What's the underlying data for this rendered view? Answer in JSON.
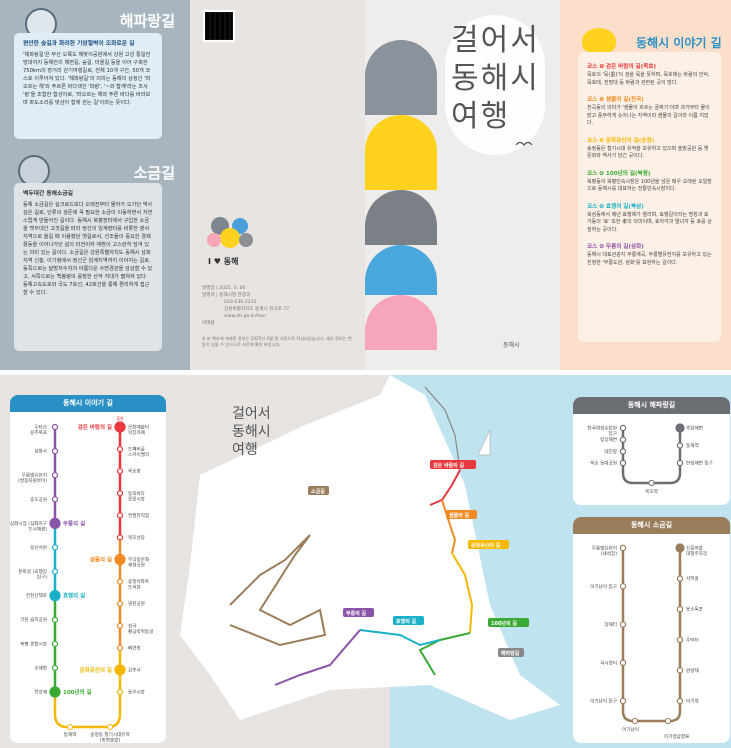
{
  "haeparang": {
    "title": "해파랑길",
    "subtitle": "편안한 숲길과 화려한 기암절벽이 조화로운 길",
    "body": "'해파랑길'은 부산 오륙도 해맞이공원에서 강원 고성 통일전망대까지 동해안의 해변길, 숲길, 마을길 등을 이어 구축한 750km의 장거리 걷기여행길로, 전체 10개 구간, 50개 코스로 이루어져 있다. '해파랑길'의 의미는 동해의 상징인 '떠오르는 해'와 푸르른 바다색인 '파랑', '~와 함께'라는 조사 '랑'을 조합한 합성어로, '떠오르는 해와 푸른 바다를 바라보며 파도소리를 벗삼아 함께 걷는 길'이라는 뜻이다."
  },
  "sogeum": {
    "title": "소금길",
    "subtitle": "백두대간 동해소금길",
    "body": "동해 소금길은 실크로드보다 오래전부터 물자가 오가던 역사 깊은 길로, 인류의 생존에 꼭 필요한 소금이 이동하면서 자연스럽게 만들어진 길이다. 동해시 북평장터에서 구입한 소금을 백두대간 고갯길을 따라 정선의 임계장터를 비롯한 영서 지역으로 옮길 때 이용했던 옛길로서, 선조들이 중요한 경제활동을 이어나가던 삶의 터전이자 애환이 고스란히 담겨 있는 의미 있는 길이다. 소금길은 강원특별자치도 동해시 삼화지역 신흥, 이기령에서 정선군 임계지역까지 이어지는 길로, 동쪽으로는 달방저수지의 아름다운 수변경관을 감상할 수 있고, 서쪽으로는 백봉령의 웅장한 산악 지대가 펼쳐져 있다. 동해고속도로와 국도 7호선, 42호선을 통해 편리하게 접근할 수 있다."
  },
  "publication": {
    "logo_text": "I ♥ 동해",
    "lines": [
      "발행일 | 2025. 0. 00",
      "발행처 | 동해시청 관광과",
      "033-530-2232",
      "강원특별자치도 동해시 천곡로 77",
      "www.dh.go.kr/tour",
      "비매품"
    ],
    "note": "※ 본 책자에 게재된 정보는 2025년 0월 말 기준으로 작성되었습니다. 세부 정보는 변동이 있을 수 있으므로 사전에 확인 바랍니다."
  },
  "cover": {
    "title_lines": [
      "걸어서",
      "동해시",
      "여행"
    ],
    "publisher_logo": "동해시"
  },
  "story": {
    "title": "동해시 이야기 길",
    "courses": [
      {
        "label": "코스 ❶ 검은 바람의 길(묵호)",
        "color": "#e8383d",
        "text": "묵호의 '묵(墨)'이 검을 묵을 뜻하며, 묵호에는 바람의 언덕, 묵호태, 전망대 등 바람과 관련된 곳이 많다."
      },
      {
        "label": "코스 ❷ 샘물의 길(천곡)",
        "color": "#f08a24",
        "text": "천곡동의 의미가 '샘물이 흐르는 골짜기'이며 과거부터 물이 맑고 풍부하게 솟아나는 지역이라 샘물의 길이라 이름 지었다."
      },
      {
        "label": "코스 ❸ 문화유산의 길(송정)",
        "color": "#f5b700",
        "text": "송정동은 철기시대 유적을 보유하고 있으며 솔밭공원 등 옛 문화와 역사가 담긴 곳이다."
      },
      {
        "label": "코스 ❹ 100년의 길(북평)",
        "color": "#3aaa35",
        "text": "북평동의 북평민속시장은 100년을 넘은 매우 오래된 오일장으로 동해시를 대표하는 전통민속시장이다."
      },
      {
        "label": "코스 ❺ 효행의 길(북삼)",
        "color": "#1ab0c8",
        "text": "북삼동에서 매년 효행제가 열리며, 효행길이라는 명칭과 효가동의 '효' 또한 孝의 의미이며, 효자각과 열녀각 등 효를 상징하는 곳이다."
      },
      {
        "label": "코스 ❻ 무릉의 길(삼화)",
        "color": "#8a55a8",
        "text": "동해시 대표관광지 무릉계곡, 무릉별유천지를 보유하고 있는 진정한 '무릉도원, 삼화'를 표현하는 길이다."
      }
    ]
  },
  "story_route": {
    "title": "동해시 이야기 길",
    "start_badge": "출발",
    "left_stations": [
      {
        "name": "두타산 용추폭포",
        "color": "#8a55a8"
      },
      {
        "name": "삼화사",
        "color": "#8a55a8"
      },
      {
        "name": "무릉별유천지 (쌍용자원바이)",
        "color": "#8a55a8"
      },
      {
        "name": "중도공원",
        "color": "#8a55a8"
      },
      {
        "name": "삼화시장 (삼화지구 도시재생)",
        "color": "#8a55a8",
        "course": "무릉의 길",
        "course_color": "#8a55a8"
      },
      {
        "name": "용산서원",
        "color": "#1ab0c8"
      },
      {
        "name": "분토골 (효행길 입구)",
        "color": "#1ab0c8"
      },
      {
        "name": "전천산책로",
        "color": "#1ab0c8",
        "course": "효행의 길",
        "course_color": "#1ab0c8"
      },
      {
        "name": "기린 습지공원",
        "color": "#3aaa35"
      },
      {
        "name": "북평 종합시장",
        "color": "#3aaa35"
      },
      {
        "name": "호해정",
        "color": "#3aaa35"
      },
      {
        "name": "언강재",
        "color": "#3aaa35",
        "course": "100년의 길",
        "course_color": "#3aaa35"
      }
    ],
    "right_stations": [
      {
        "name": "문화예술더 익장카페",
        "color": "#e8383d",
        "course": "검은 바람의 길",
        "course_color": "#e8383d"
      },
      {
        "name": "도째비골 스카이밸리",
        "color": "#e8383d"
      },
      {
        "name": "묵호항",
        "color": "#e8383d"
      },
      {
        "name": "동쪽바다 중앙시장",
        "color": "#e8383d"
      },
      {
        "name": "연필뮤지엄",
        "color": "#e8383d"
      },
      {
        "name": "묵호성당",
        "color": "#e8383d"
      },
      {
        "name": "부곡동문화 재생공원",
        "color": "#f08a24",
        "course": "샘물의 길",
        "course_color": "#f08a24"
      },
      {
        "name": "용정아파트 도서관",
        "color": "#f08a24"
      },
      {
        "name": "냉천공원",
        "color": "#f08a24"
      },
      {
        "name": "천곡 황금박쥐동굴",
        "color": "#f08a24"
      },
      {
        "name": "배연정",
        "color": "#f08a24"
      },
      {
        "name": "감추사",
        "color": "#f5b700",
        "course": "문화유산의 길",
        "course_color": "#f5b700"
      },
      {
        "name": "동부시장",
        "color": "#f5b700"
      }
    ],
    "bottom_stations": [
      "동해역",
      "송정동 철기시대유적 (송정솔밭)"
    ]
  },
  "haeparang_route": {
    "title": "동해시 해파랑길",
    "color": "#6b6e73",
    "left_stations": [
      "한국여성수련원 입구",
      "망상해변",
      "대진항",
      "묵호 등대공원"
    ],
    "bottom_station": "묵호역",
    "right_stations": [
      "추암해변",
      "동해역",
      "한섬해변 입구"
    ]
  },
  "sogeum_route": {
    "title": "동해시 소금길",
    "color": "#9a7d5a",
    "left_stations": [
      "무릉별유천지 (쇄석장)",
      "이기남이 입구",
      "장재터",
      "국시령이",
      "이기남이 입구"
    ],
    "bottom_stations": [
      "이기남이",
      "이기령삼합류"
    ],
    "right_stations": [
      "신흥마을 대형주차장",
      "서학골",
      "용소폭포",
      "주막터",
      "원방재",
      "이기령"
    ]
  },
  "map": {
    "title_lines": [
      "걸어서",
      "동해시",
      "여행"
    ],
    "labels": [
      {
        "text": "검은 바람의 길",
        "color": "#e8383d"
      },
      {
        "text": "샘물의 길",
        "color": "#f08a24"
      },
      {
        "text": "문화유산의 길",
        "color": "#f5b700"
      },
      {
        "text": "100년의 길",
        "color": "#3aaa35"
      },
      {
        "text": "효행의 길",
        "color": "#1ab0c8"
      },
      {
        "text": "무릉의 길",
        "color": "#8a55a8"
      },
      {
        "text": "소금길",
        "color": "#9a7d5a"
      },
      {
        "text": "해파랑길",
        "color": "#888888"
      }
    ]
  }
}
